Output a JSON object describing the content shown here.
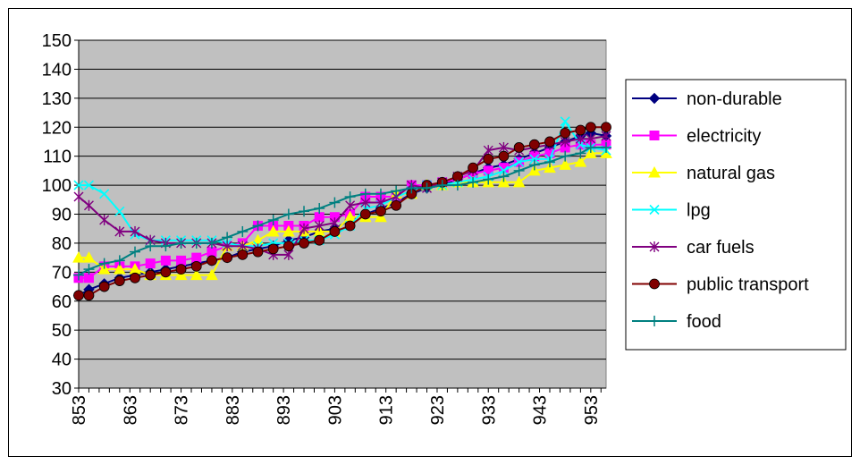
{
  "chart_data": {
    "type": "line",
    "title": "",
    "xlabel": "",
    "ylabel": "",
    "ylim": [
      30,
      150
    ],
    "yticks": [
      30,
      40,
      50,
      60,
      70,
      80,
      90,
      100,
      110,
      120,
      130,
      140,
      150
    ],
    "x_tick_labels": [
      "853",
      "863",
      "873",
      "883",
      "893",
      "903",
      "913",
      "923",
      "933",
      "943",
      "953"
    ],
    "x_start": 853,
    "x_end": 956,
    "x_tick_step": 10,
    "grid": "horizontal",
    "plot_background": "#c0c0c0",
    "legend_position": "right",
    "series": [
      {
        "name": "non-durable",
        "color": "#000080",
        "marker": "diamond",
        "values": [
          [
            853,
            62
          ],
          [
            855,
            64
          ],
          [
            858,
            66
          ],
          [
            861,
            68
          ],
          [
            864,
            69
          ],
          [
            867,
            70
          ],
          [
            870,
            71
          ],
          [
            873,
            72
          ],
          [
            876,
            73
          ],
          [
            879,
            74
          ],
          [
            882,
            75
          ],
          [
            885,
            77
          ],
          [
            888,
            78
          ],
          [
            891,
            79
          ],
          [
            894,
            81
          ],
          [
            897,
            82
          ],
          [
            900,
            84
          ],
          [
            903,
            85
          ],
          [
            906,
            88
          ],
          [
            909,
            90
          ],
          [
            912,
            92
          ],
          [
            915,
            94
          ],
          [
            918,
            97
          ],
          [
            921,
            99
          ],
          [
            924,
            100
          ],
          [
            927,
            102
          ],
          [
            930,
            104
          ],
          [
            933,
            106
          ],
          [
            936,
            107
          ],
          [
            939,
            109
          ],
          [
            942,
            111
          ],
          [
            945,
            113
          ],
          [
            948,
            115
          ],
          [
            951,
            117
          ],
          [
            953,
            118
          ],
          [
            956,
            117
          ]
        ]
      },
      {
        "name": "electricity",
        "color": "#ff00ff",
        "marker": "square",
        "values": [
          [
            853,
            68
          ],
          [
            855,
            68
          ],
          [
            858,
            72
          ],
          [
            861,
            72
          ],
          [
            864,
            72
          ],
          [
            867,
            73
          ],
          [
            870,
            74
          ],
          [
            873,
            74
          ],
          [
            876,
            75
          ],
          [
            879,
            77
          ],
          [
            882,
            79
          ],
          [
            885,
            80
          ],
          [
            888,
            86
          ],
          [
            891,
            86
          ],
          [
            894,
            86
          ],
          [
            897,
            86
          ],
          [
            900,
            89
          ],
          [
            903,
            89
          ],
          [
            906,
            90
          ],
          [
            909,
            96
          ],
          [
            912,
            96
          ],
          [
            915,
            96
          ],
          [
            918,
            100
          ],
          [
            921,
            100
          ],
          [
            924,
            101
          ],
          [
            927,
            102
          ],
          [
            930,
            104
          ],
          [
            933,
            105
          ],
          [
            936,
            106
          ],
          [
            939,
            108
          ],
          [
            942,
            110
          ],
          [
            945,
            111
          ],
          [
            948,
            113
          ],
          [
            951,
            114
          ],
          [
            953,
            114
          ],
          [
            956,
            114
          ]
        ]
      },
      {
        "name": "natural gas",
        "color": "#ffff00",
        "marker": "triangle",
        "values": [
          [
            853,
            75
          ],
          [
            855,
            75
          ],
          [
            858,
            71
          ],
          [
            861,
            71
          ],
          [
            864,
            71
          ],
          [
            867,
            69
          ],
          [
            870,
            69
          ],
          [
            873,
            69
          ],
          [
            876,
            69
          ],
          [
            879,
            69
          ],
          [
            882,
            79
          ],
          [
            885,
            79
          ],
          [
            888,
            81
          ],
          [
            891,
            84
          ],
          [
            894,
            84
          ],
          [
            897,
            84
          ],
          [
            900,
            84
          ],
          [
            903,
            84
          ],
          [
            906,
            89
          ],
          [
            909,
            89
          ],
          [
            912,
            89
          ],
          [
            915,
            97
          ],
          [
            918,
            97
          ],
          [
            921,
            100
          ],
          [
            924,
            100
          ],
          [
            927,
            101
          ],
          [
            930,
            101
          ],
          [
            933,
            101
          ],
          [
            936,
            101
          ],
          [
            939,
            101
          ],
          [
            942,
            105
          ],
          [
            945,
            106
          ],
          [
            948,
            107
          ],
          [
            951,
            108
          ],
          [
            953,
            111
          ],
          [
            956,
            111
          ]
        ]
      },
      {
        "name": "lpg",
        "color": "#00ffff",
        "marker": "x",
        "values": [
          [
            853,
            100
          ],
          [
            855,
            100
          ],
          [
            858,
            97
          ],
          [
            861,
            91
          ],
          [
            864,
            83
          ],
          [
            867,
            81
          ],
          [
            870,
            81
          ],
          [
            873,
            81
          ],
          [
            876,
            81
          ],
          [
            879,
            81
          ],
          [
            882,
            80
          ],
          [
            885,
            79
          ],
          [
            888,
            79
          ],
          [
            891,
            80
          ],
          [
            894,
            80
          ],
          [
            897,
            81
          ],
          [
            900,
            81
          ],
          [
            903,
            83
          ],
          [
            906,
            86
          ],
          [
            909,
            92
          ],
          [
            912,
            93
          ],
          [
            915,
            96
          ],
          [
            918,
            98
          ],
          [
            921,
            100
          ],
          [
            924,
            100
          ],
          [
            927,
            101
          ],
          [
            930,
            102
          ],
          [
            933,
            103
          ],
          [
            936,
            105
          ],
          [
            939,
            108
          ],
          [
            942,
            109
          ],
          [
            945,
            109
          ],
          [
            948,
            122
          ],
          [
            951,
            114
          ],
          [
            953,
            113
          ],
          [
            956,
            112
          ]
        ]
      },
      {
        "name": "car fuels",
        "color": "#800080",
        "marker": "star",
        "values": [
          [
            853,
            96
          ],
          [
            855,
            93
          ],
          [
            858,
            88
          ],
          [
            861,
            84
          ],
          [
            864,
            84
          ],
          [
            867,
            81
          ],
          [
            870,
            80
          ],
          [
            873,
            80
          ],
          [
            876,
            80
          ],
          [
            879,
            80
          ],
          [
            882,
            79
          ],
          [
            885,
            79
          ],
          [
            888,
            78
          ],
          [
            891,
            76
          ],
          [
            894,
            76
          ],
          [
            897,
            85
          ],
          [
            900,
            86
          ],
          [
            903,
            87
          ],
          [
            906,
            93
          ],
          [
            909,
            94
          ],
          [
            912,
            94
          ],
          [
            915,
            96
          ],
          [
            918,
            100
          ],
          [
            921,
            99
          ],
          [
            924,
            101
          ],
          [
            927,
            103
          ],
          [
            930,
            105
          ],
          [
            933,
            112
          ],
          [
            936,
            113
          ],
          [
            939,
            112
          ],
          [
            942,
            113
          ],
          [
            945,
            114
          ],
          [
            948,
            115
          ],
          [
            951,
            116
          ],
          [
            953,
            116
          ],
          [
            956,
            117
          ]
        ]
      },
      {
        "name": "public transport",
        "color": "#800000",
        "marker": "circle",
        "values": [
          [
            853,
            62
          ],
          [
            855,
            62
          ],
          [
            858,
            65
          ],
          [
            861,
            67
          ],
          [
            864,
            68
          ],
          [
            867,
            69
          ],
          [
            870,
            70
          ],
          [
            873,
            71
          ],
          [
            876,
            72
          ],
          [
            879,
            74
          ],
          [
            882,
            75
          ],
          [
            885,
            76
          ],
          [
            888,
            77
          ],
          [
            891,
            78
          ],
          [
            894,
            79
          ],
          [
            897,
            80
          ],
          [
            900,
            81
          ],
          [
            903,
            84
          ],
          [
            906,
            86
          ],
          [
            909,
            90
          ],
          [
            912,
            91
          ],
          [
            915,
            93
          ],
          [
            918,
            97
          ],
          [
            921,
            100
          ],
          [
            924,
            101
          ],
          [
            927,
            103
          ],
          [
            930,
            106
          ],
          [
            933,
            109
          ],
          [
            936,
            110
          ],
          [
            939,
            113
          ],
          [
            942,
            114
          ],
          [
            945,
            115
          ],
          [
            948,
            118
          ],
          [
            951,
            119
          ],
          [
            953,
            120
          ],
          [
            956,
            120
          ]
        ]
      },
      {
        "name": "food",
        "color": "#008080",
        "marker": "plus",
        "values": [
          [
            853,
            69
          ],
          [
            855,
            71
          ],
          [
            858,
            73
          ],
          [
            861,
            74
          ],
          [
            864,
            77
          ],
          [
            867,
            79
          ],
          [
            870,
            79
          ],
          [
            873,
            80
          ],
          [
            876,
            80
          ],
          [
            879,
            80
          ],
          [
            882,
            82
          ],
          [
            885,
            84
          ],
          [
            888,
            86
          ],
          [
            891,
            88
          ],
          [
            894,
            90
          ],
          [
            897,
            91
          ],
          [
            900,
            92
          ],
          [
            903,
            94
          ],
          [
            906,
            96
          ],
          [
            909,
            97
          ],
          [
            912,
            97
          ],
          [
            915,
            98
          ],
          [
            918,
            99
          ],
          [
            921,
            99
          ],
          [
            924,
            100
          ],
          [
            927,
            100
          ],
          [
            930,
            101
          ],
          [
            933,
            102
          ],
          [
            936,
            103
          ],
          [
            939,
            105
          ],
          [
            942,
            107
          ],
          [
            945,
            108
          ],
          [
            948,
            110
          ],
          [
            951,
            111
          ],
          [
            953,
            113
          ],
          [
            956,
            113
          ]
        ]
      }
    ]
  }
}
